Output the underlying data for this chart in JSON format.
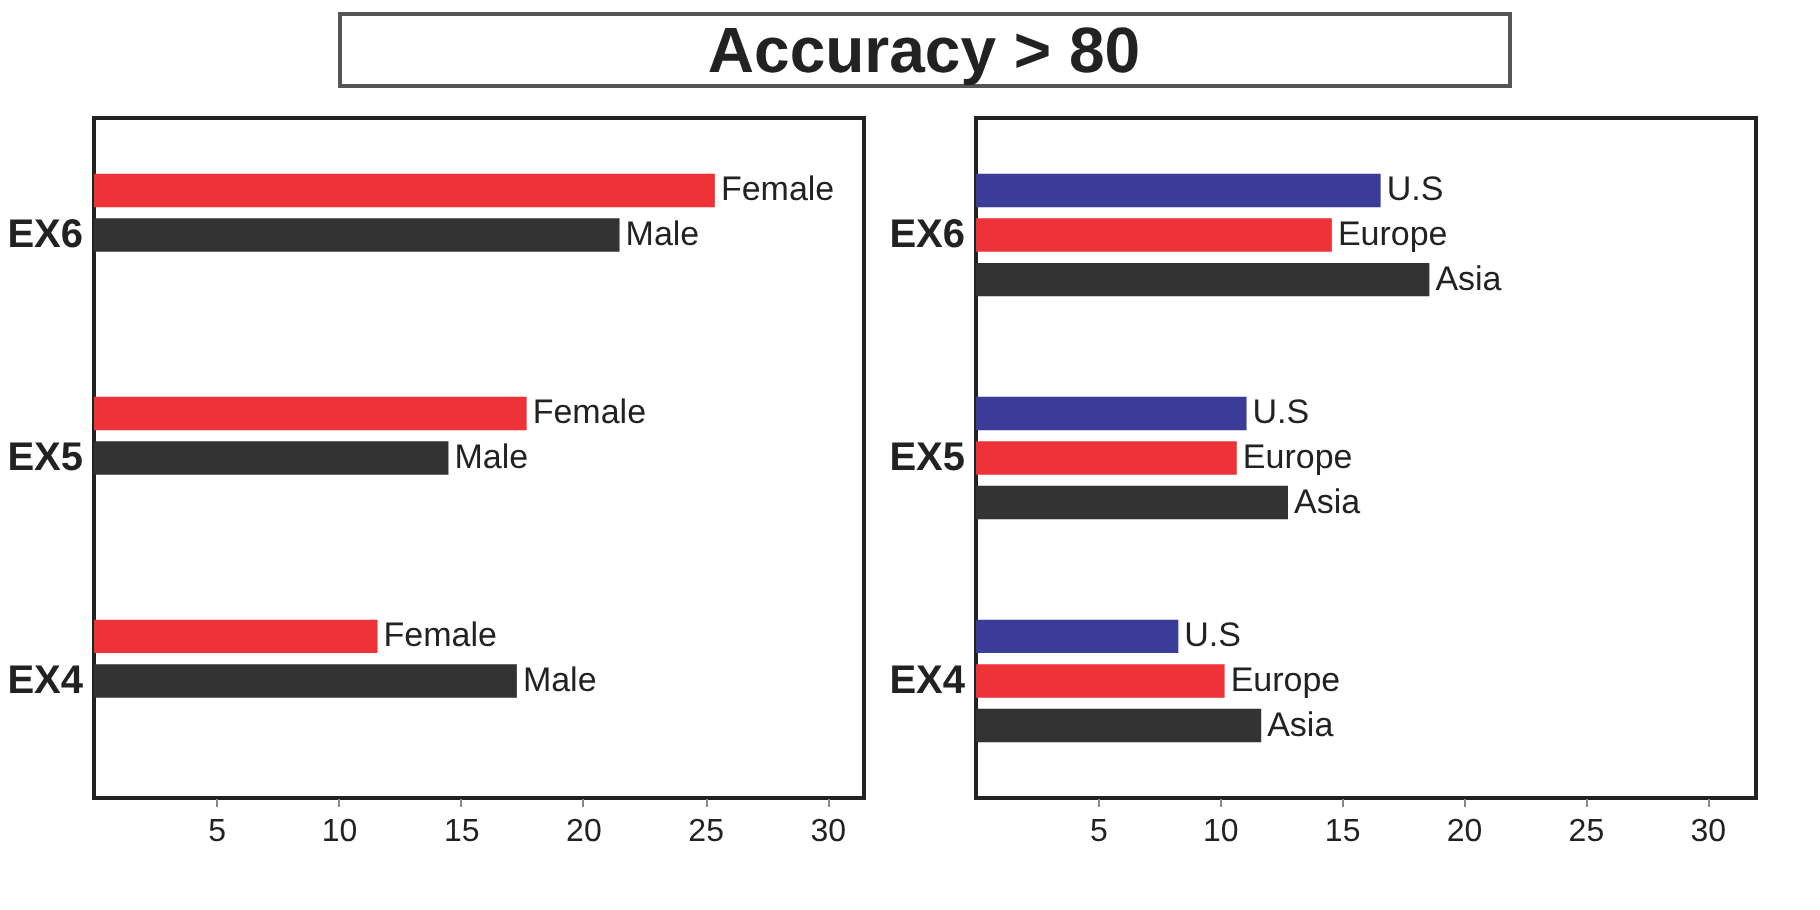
{
  "chart_data": [
    {
      "type": "bar",
      "orientation": "horizontal",
      "title": "Accuracy > 80",
      "categories": [
        "EX6",
        "EX5",
        "EX4"
      ],
      "xlim": [
        0,
        31.5
      ],
      "xticks": [
        5,
        10,
        15,
        20,
        25,
        30
      ],
      "series": [
        {
          "name": "Female",
          "color": "#ee3338",
          "values": [
            25.4,
            17.7,
            11.6
          ]
        },
        {
          "name": "Male",
          "color": "#333333",
          "values": [
            21.5,
            14.5,
            17.3
          ]
        }
      ]
    },
    {
      "type": "bar",
      "orientation": "horizontal",
      "categories": [
        "EX6",
        "EX5",
        "EX4"
      ],
      "xlim": [
        0,
        32
      ],
      "xticks": [
        5,
        10,
        15,
        20,
        25,
        30
      ],
      "series": [
        {
          "name": "U.S",
          "color": "#3b3b98",
          "values": [
            16.6,
            11.1,
            8.3
          ]
        },
        {
          "name": "Europe",
          "color": "#ee3338",
          "values": [
            14.6,
            10.7,
            10.2
          ]
        },
        {
          "name": "Asia",
          "color": "#333333",
          "values": [
            18.6,
            12.8,
            11.7
          ]
        }
      ]
    }
  ]
}
